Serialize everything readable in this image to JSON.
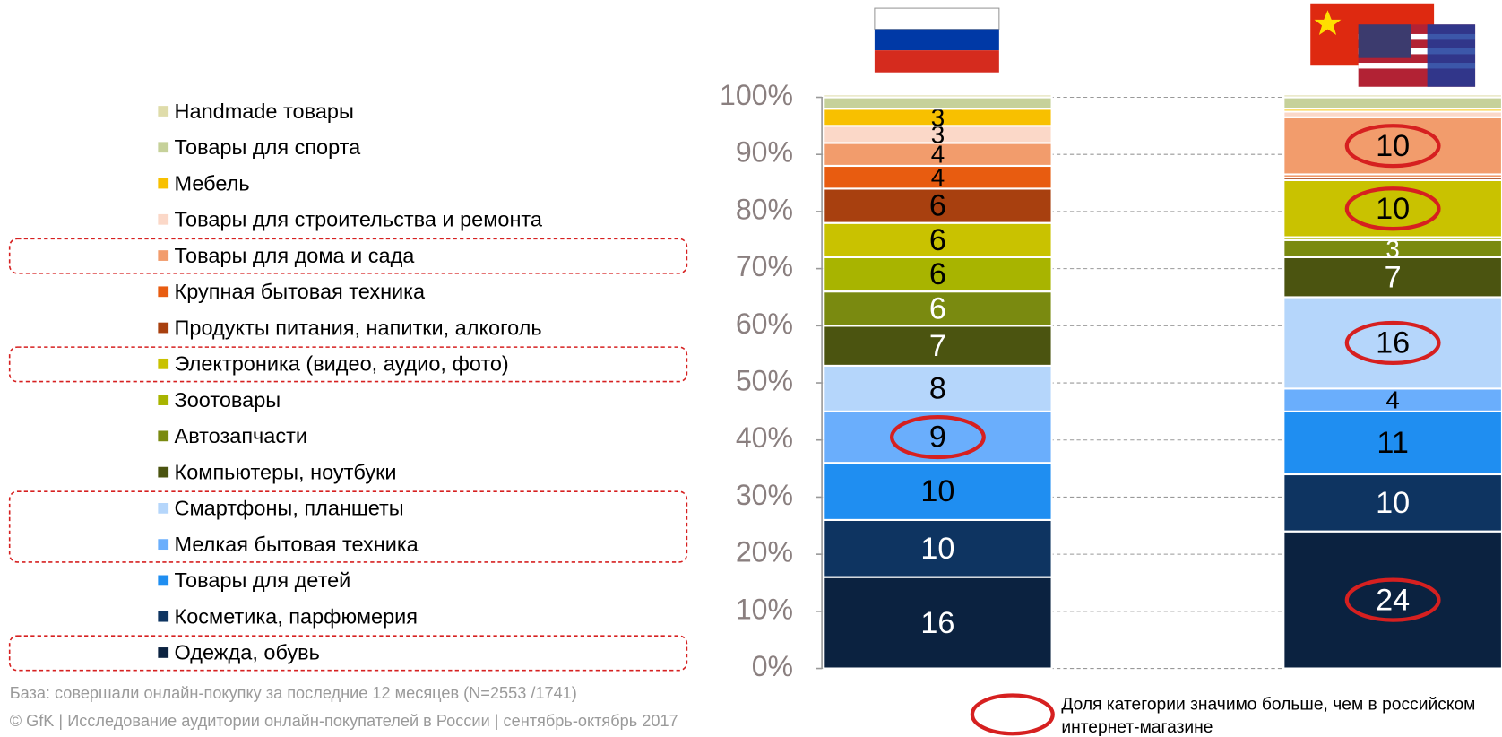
{
  "chart_data": {
    "type": "stacked_bar",
    "yticks": [
      {
        "value": 0,
        "label": "0%"
      },
      {
        "value": 10,
        "label": "10%"
      },
      {
        "value": 20,
        "label": "20%"
      },
      {
        "value": 30,
        "label": "30%"
      },
      {
        "value": 40,
        "label": "40%"
      },
      {
        "value": 50,
        "label": "50%"
      },
      {
        "value": 60,
        "label": "60%"
      },
      {
        "value": 70,
        "label": "70%"
      },
      {
        "value": 80,
        "label": "80%"
      },
      {
        "value": 90,
        "label": "90%"
      },
      {
        "value": 100,
        "label": "100%"
      }
    ],
    "ylim": [
      0,
      100
    ],
    "grid": true,
    "series": [
      {
        "name": "Одежда, обувь",
        "color": "#0b2240",
        "values": [
          16,
          24
        ],
        "show_label": [
          true,
          true
        ],
        "label_color": "#ffffff",
        "circled": [
          false,
          true
        ],
        "boxed": true
      },
      {
        "name": "Косметика, парфюмерия",
        "color": "#0e3461",
        "values": [
          10,
          10
        ],
        "show_label": [
          true,
          true
        ],
        "label_color": "#ffffff",
        "circled": [
          false,
          false
        ],
        "boxed": false
      },
      {
        "name": "Товары для детей",
        "color": "#1f8ef1",
        "values": [
          10,
          11
        ],
        "show_label": [
          true,
          true
        ],
        "label_color": "#000000",
        "circled": [
          false,
          false
        ],
        "boxed": false
      },
      {
        "name": "Мелкая бытовая техника",
        "color": "#6aaefc",
        "values": [
          9,
          4
        ],
        "show_label": [
          true,
          true
        ],
        "label_color": "#000000",
        "circled": [
          true,
          false
        ],
        "boxed": true
      },
      {
        "name": "Смартфоны, планшеты",
        "color": "#b5d6fb",
        "values": [
          8,
          16
        ],
        "show_label": [
          true,
          true
        ],
        "label_color": "#000000",
        "circled": [
          false,
          true
        ],
        "boxed": true
      },
      {
        "name": "Компьютеры, ноутбуки",
        "color": "#4b5410",
        "values": [
          7,
          7
        ],
        "show_label": [
          true,
          true
        ],
        "label_color": "#ffffff",
        "circled": [
          false,
          false
        ],
        "boxed": false
      },
      {
        "name": "Автозапчасти",
        "color": "#7a8a10",
        "values": [
          6,
          3
        ],
        "show_label": [
          true,
          true
        ],
        "label_color": "#ffffff",
        "circled": [
          false,
          false
        ],
        "boxed": false
      },
      {
        "name": "Зоотовары",
        "color": "#a8b400",
        "values": [
          6,
          0.5
        ],
        "show_label": [
          true,
          false
        ],
        "label_color": "#000000",
        "circled": [
          false,
          false
        ],
        "boxed": false
      },
      {
        "name": "Электроника (видео, аудио, фото)",
        "color": "#c9c200",
        "values": [
          6,
          10
        ],
        "show_label": [
          true,
          true
        ],
        "label_color": "#000000",
        "circled": [
          false,
          true
        ],
        "boxed": true
      },
      {
        "name": "Продукты питания, напитки, алкоголь",
        "color": "#a8400f",
        "values": [
          6,
          0.5
        ],
        "show_label": [
          true,
          false
        ],
        "label_color": "#000000",
        "circled": [
          false,
          false
        ],
        "boxed": false
      },
      {
        "name": "Крупная бытовая техника",
        "color": "#e85c10",
        "values": [
          4,
          0.5
        ],
        "show_label": [
          true,
          false
        ],
        "label_color": "#000000",
        "circled": [
          false,
          false
        ],
        "boxed": false
      },
      {
        "name": "Товары для дома и сада",
        "color": "#f29c6c",
        "values": [
          4,
          10
        ],
        "show_label": [
          true,
          true
        ],
        "label_color": "#000000",
        "circled": [
          false,
          true
        ],
        "boxed": true
      },
      {
        "name": "Товары для строительства и ремонта",
        "color": "#fbd8c8",
        "values": [
          3,
          1
        ],
        "show_label": [
          true,
          false
        ],
        "label_color": "#000000",
        "circled": [
          false,
          false
        ],
        "boxed": false
      },
      {
        "name": "Мебель",
        "color": "#f8c000",
        "values": [
          3,
          0.5
        ],
        "show_label": [
          true,
          false
        ],
        "label_color": "#000000",
        "circled": [
          false,
          false
        ],
        "boxed": false
      },
      {
        "name": "Товары для спорта",
        "color": "#c6d19a",
        "values": [
          2,
          2
        ],
        "show_label": [
          false,
          false
        ],
        "label_color": "#000000",
        "circled": [
          false,
          false
        ],
        "boxed": false
      },
      {
        "name": "Handmade товары",
        "color": "#dfdcaa",
        "values": [
          0.5,
          0.5
        ],
        "show_label": [
          false,
          false
        ],
        "label_color": "#000000",
        "circled": [
          false,
          false
        ],
        "boxed": false
      }
    ],
    "base_note": "База: совершали онлайн-покупку за последние 12 месяцев (N=2553 /1741)",
    "copyright": "© GfK | Исследование аудитории онлайн-покупателей в России | сентябрь-октябрь  2017",
    "circle_note": "Доля категории значимо больше, чем в российском интернет-магазине"
  }
}
